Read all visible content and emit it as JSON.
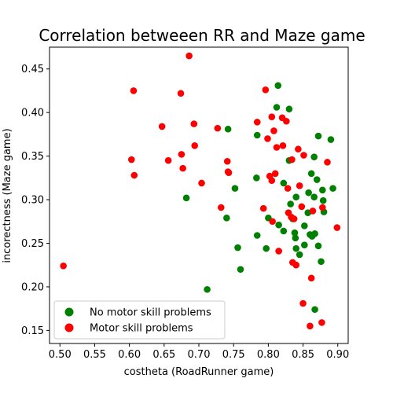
{
  "chart_data": {
    "type": "scatter",
    "title": "Correlation betweeen RR and Maze game",
    "xlabel": "costheta (RoadRunner game)",
    "ylabel": "incorectness (Maze game)",
    "xlim": [
      0.485,
      0.915
    ],
    "ylim": [
      0.135,
      0.475
    ],
    "xticks": [
      "0.50",
      "0.55",
      "0.60",
      "0.65",
      "0.70",
      "0.75",
      "0.80",
      "0.85",
      "0.90"
    ],
    "yticks": [
      "0.15",
      "0.20",
      "0.25",
      "0.30",
      "0.35",
      "0.40",
      "0.45"
    ],
    "grid": false,
    "legend_position": "lower-left",
    "series": [
      {
        "name": "No motor skill problems",
        "color": "#008000",
        "points": [
          [
            0.682,
            0.302
          ],
          [
            0.712,
            0.197
          ],
          [
            0.742,
            0.381
          ],
          [
            0.74,
            0.279
          ],
          [
            0.752,
            0.313
          ],
          [
            0.756,
            0.245
          ],
          [
            0.76,
            0.22
          ],
          [
            0.783,
            0.325
          ],
          [
            0.784,
            0.374
          ],
          [
            0.784,
            0.259
          ],
          [
            0.797,
            0.244
          ],
          [
            0.8,
            0.279
          ],
          [
            0.812,
            0.406
          ],
          [
            0.814,
            0.431
          ],
          [
            0.815,
            0.271
          ],
          [
            0.822,
            0.319
          ],
          [
            0.822,
            0.264
          ],
          [
            0.83,
            0.404
          ],
          [
            0.83,
            0.345
          ],
          [
            0.832,
            0.295
          ],
          [
            0.835,
            0.278
          ],
          [
            0.838,
            0.262
          ],
          [
            0.839,
            0.256
          ],
          [
            0.84,
            0.244
          ],
          [
            0.84,
            0.303
          ],
          [
            0.845,
            0.237
          ],
          [
            0.852,
            0.248
          ],
          [
            0.852,
            0.27
          ],
          [
            0.857,
            0.285
          ],
          [
            0.858,
            0.308
          ],
          [
            0.86,
            0.26
          ],
          [
            0.862,
            0.33
          ],
          [
            0.863,
            0.258
          ],
          [
            0.866,
            0.349
          ],
          [
            0.866,
            0.303
          ],
          [
            0.867,
            0.261
          ],
          [
            0.867,
            0.174
          ],
          [
            0.87,
            0.323
          ],
          [
            0.872,
            0.373
          ],
          [
            0.872,
            0.247
          ],
          [
            0.876,
            0.229
          ],
          [
            0.878,
            0.311
          ],
          [
            0.879,
            0.299
          ],
          [
            0.88,
            0.286
          ],
          [
            0.89,
            0.369
          ],
          [
            0.893,
            0.313
          ]
        ]
      },
      {
        "name": "Motor skill problems",
        "color": "#ff0000",
        "points": [
          [
            0.505,
            0.224
          ],
          [
            0.603,
            0.346
          ],
          [
            0.606,
            0.425
          ],
          [
            0.607,
            0.328
          ],
          [
            0.647,
            0.384
          ],
          [
            0.656,
            0.345
          ],
          [
            0.674,
            0.422
          ],
          [
            0.675,
            0.352
          ],
          [
            0.677,
            0.336
          ],
          [
            0.686,
            0.465
          ],
          [
            0.693,
            0.387
          ],
          [
            0.694,
            0.362
          ],
          [
            0.704,
            0.319
          ],
          [
            0.727,
            0.382
          ],
          [
            0.732,
            0.291
          ],
          [
            0.741,
            0.344
          ],
          [
            0.742,
            0.332
          ],
          [
            0.743,
            0.331
          ],
          [
            0.784,
            0.389
          ],
          [
            0.793,
            0.29
          ],
          [
            0.796,
            0.426
          ],
          [
            0.799,
            0.37
          ],
          [
            0.802,
            0.327
          ],
          [
            0.805,
            0.395
          ],
          [
            0.805,
            0.322
          ],
          [
            0.806,
            0.275
          ],
          [
            0.808,
            0.379
          ],
          [
            0.81,
            0.33
          ],
          [
            0.812,
            0.36
          ],
          [
            0.815,
            0.241
          ],
          [
            0.82,
            0.394
          ],
          [
            0.821,
            0.362
          ],
          [
            0.826,
            0.39
          ],
          [
            0.828,
            0.313
          ],
          [
            0.829,
            0.285
          ],
          [
            0.833,
            0.28
          ],
          [
            0.834,
            0.346
          ],
          [
            0.835,
            0.228
          ],
          [
            0.837,
            0.278
          ],
          [
            0.84,
            0.225
          ],
          [
            0.843,
            0.358
          ],
          [
            0.845,
            0.316
          ],
          [
            0.848,
            0.292
          ],
          [
            0.85,
            0.181
          ],
          [
            0.851,
            0.351
          ],
          [
            0.86,
            0.155
          ],
          [
            0.862,
            0.21
          ],
          [
            0.864,
            0.287
          ],
          [
            0.877,
            0.159
          ],
          [
            0.878,
            0.291
          ],
          [
            0.885,
            0.343
          ],
          [
            0.899,
            0.268
          ]
        ]
      }
    ]
  }
}
